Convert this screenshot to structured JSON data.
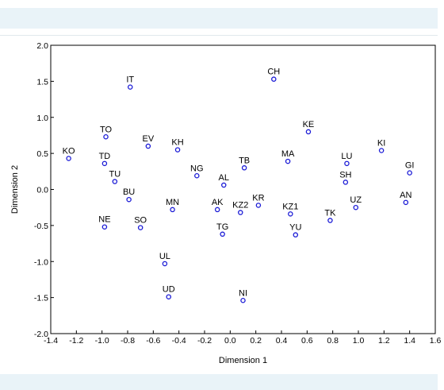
{
  "chart_data": {
    "type": "scatter",
    "title": "",
    "xlabel": "Dimension 1",
    "ylabel": "Dimension 2",
    "xlim": [
      -1.4,
      1.6
    ],
    "ylim": [
      -2.0,
      2.0
    ],
    "x_ticks": [
      "-1.4",
      "-1.2",
      "-1.0",
      "-0.8",
      "-0.6",
      "-0.4",
      "-0.2",
      "0.0",
      "0.2",
      "0.4",
      "0.6",
      "0.8",
      "1.0",
      "1.2",
      "1.4",
      "1.6"
    ],
    "y_ticks": [
      "2.0",
      "1.5",
      "1.0",
      "0.5",
      "0.0",
      "-0.5",
      "-1.0",
      "-1.5",
      "-2.0"
    ],
    "grid": false,
    "legend": "none",
    "marker_color": "#1a1ad6",
    "points": [
      {
        "label": "IT",
        "x": -0.78,
        "y": 1.42
      },
      {
        "label": "CH",
        "x": 0.34,
        "y": 1.53
      },
      {
        "label": "KE",
        "x": 0.61,
        "y": 0.8
      },
      {
        "label": "TO",
        "x": -0.97,
        "y": 0.73
      },
      {
        "label": "EV",
        "x": -0.64,
        "y": 0.6
      },
      {
        "label": "KH",
        "x": -0.41,
        "y": 0.55
      },
      {
        "label": "KO",
        "x": -1.26,
        "y": 0.43
      },
      {
        "label": "TD",
        "x": -0.98,
        "y": 0.36
      },
      {
        "label": "TU",
        "x": -0.9,
        "y": 0.11
      },
      {
        "label": "BU",
        "x": -0.79,
        "y": -0.14
      },
      {
        "label": "NG",
        "x": -0.26,
        "y": 0.19
      },
      {
        "label": "TB",
        "x": 0.11,
        "y": 0.3
      },
      {
        "label": "AL",
        "x": -0.05,
        "y": 0.06
      },
      {
        "label": "MA",
        "x": 0.45,
        "y": 0.39
      },
      {
        "label": "LU",
        "x": 0.91,
        "y": 0.36
      },
      {
        "label": "KI",
        "x": 1.18,
        "y": 0.54
      },
      {
        "label": "GI",
        "x": 1.4,
        "y": 0.23
      },
      {
        "label": "SH",
        "x": 0.9,
        "y": 0.1
      },
      {
        "label": "AN",
        "x": 1.37,
        "y": -0.18
      },
      {
        "label": "UZ",
        "x": 0.98,
        "y": -0.25
      },
      {
        "label": "NE",
        "x": -0.98,
        "y": -0.52
      },
      {
        "label": "SO",
        "x": -0.7,
        "y": -0.53
      },
      {
        "label": "MN",
        "x": -0.45,
        "y": -0.28
      },
      {
        "label": "AK",
        "x": -0.1,
        "y": -0.28
      },
      {
        "label": "KZ2",
        "x": 0.08,
        "y": -0.32
      },
      {
        "label": "KR",
        "x": 0.22,
        "y": -0.22
      },
      {
        "label": "KZ1",
        "x": 0.47,
        "y": -0.34
      },
      {
        "label": "TK",
        "x": 0.78,
        "y": -0.43
      },
      {
        "label": "YU",
        "x": 0.51,
        "y": -0.63
      },
      {
        "label": "TG",
        "x": -0.06,
        "y": -0.62
      },
      {
        "label": "UL",
        "x": -0.51,
        "y": -1.03
      },
      {
        "label": "UD",
        "x": -0.48,
        "y": -1.49
      },
      {
        "label": "NI",
        "x": 0.1,
        "y": -1.54
      }
    ]
  }
}
